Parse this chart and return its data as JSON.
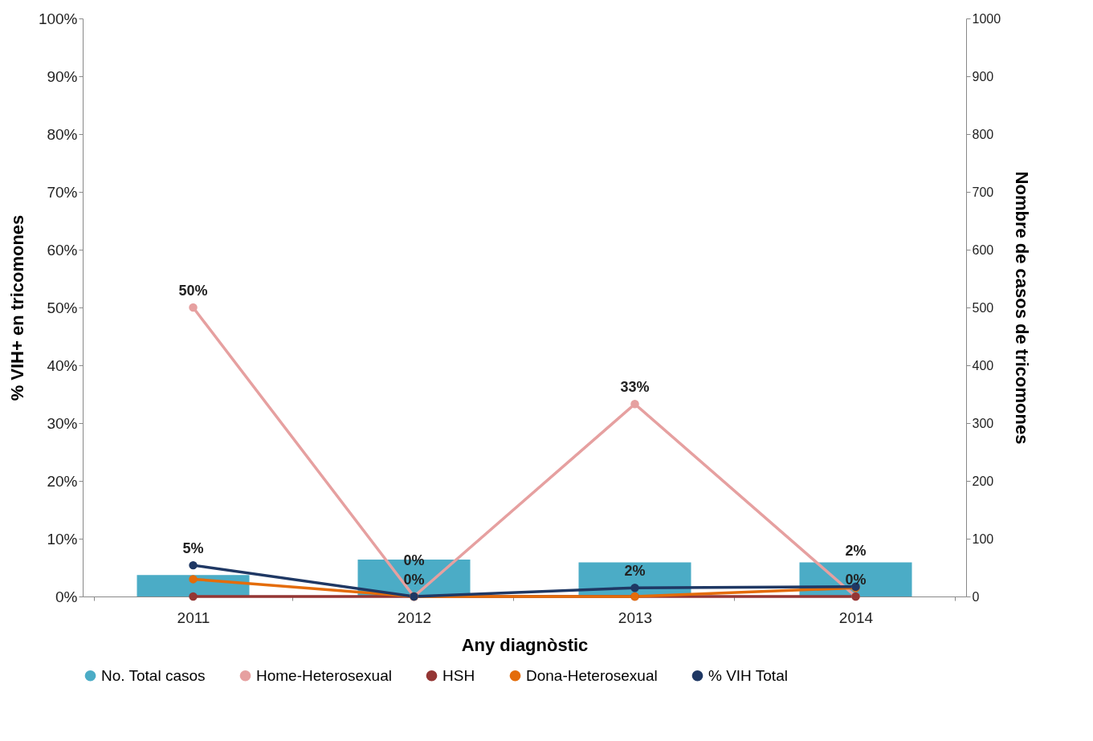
{
  "chart_data": {
    "type": "line",
    "xlabel": "Any diagnòstic",
    "ylabel": "% VIH+ en tricomones",
    "y2label": "Nombre de casos de tricomones",
    "categories": [
      "2011",
      "2012",
      "2013",
      "2014"
    ],
    "series": [
      {
        "name": "No. Total casos",
        "type": "bar",
        "axis": "y2",
        "color": "#4bacc6",
        "values": [
          37,
          64,
          59,
          59
        ]
      },
      {
        "name": "Home-Heterosexual",
        "color": "#e6a0a0",
        "values": [
          50,
          0,
          33.3,
          0
        ],
        "value_labels": [
          "50%",
          "0%",
          "33%",
          "0%"
        ]
      },
      {
        "name": "HSH",
        "color": "#943634",
        "values": [
          0,
          0,
          0,
          0
        ]
      },
      {
        "name": "Dona-Heterosexual",
        "color": "#e46c0a",
        "values": [
          3,
          0,
          0,
          1.5
        ]
      },
      {
        "name": "% VIH Total",
        "color": "#1f3864",
        "values": [
          5.4,
          0,
          1.5,
          1.7
        ],
        "value_labels": [
          "5%",
          "0%",
          "2%",
          "2%"
        ]
      }
    ],
    "ylim": [
      0,
      100
    ],
    "yticks": [
      {
        "value": 0,
        "label": "0%"
      },
      {
        "value": 10,
        "label": "10%"
      },
      {
        "value": 20,
        "label": "20%"
      },
      {
        "value": 30,
        "label": "30%"
      },
      {
        "value": 40,
        "label": "40%"
      },
      {
        "value": 50,
        "label": "50%"
      },
      {
        "value": 60,
        "label": "60%"
      },
      {
        "value": 70,
        "label": "70%"
      },
      {
        "value": 80,
        "label": "80%"
      },
      {
        "value": 90,
        "label": "90%"
      },
      {
        "value": 100,
        "label": "100%"
      }
    ],
    "y2lim": [
      0,
      1000
    ],
    "y2ticks": [
      0,
      100,
      200,
      300,
      400,
      500,
      600,
      700,
      800,
      900,
      1000
    ],
    "grid": false,
    "legend": "bottom",
    "marker": "circle",
    "line_style": "solid"
  }
}
